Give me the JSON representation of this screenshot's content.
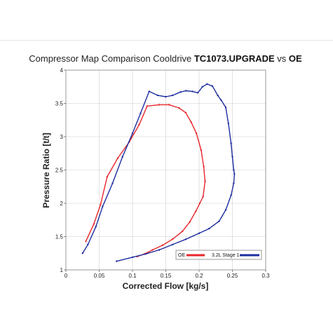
{
  "chart_data": {
    "type": "line",
    "title": {
      "prefix": "Compressor Map Comparison Cooldrive ",
      "bold_model": "TC1073.UPGRADE",
      "suffix": " vs ",
      "bold_oe": "OE"
    },
    "xlabel": "Corrected Flow [kg/s]",
    "ylabel": "Pressure Ratio [t/t]",
    "xlim": [
      0,
      0.3
    ],
    "ylim": [
      1,
      4
    ],
    "xticks": [
      0,
      0.05,
      0.1,
      0.15,
      0.2,
      0.25,
      0.3
    ],
    "xtick_labels": [
      "0",
      "0.05",
      "0.1",
      "0.15",
      "0.2",
      "0.25",
      "0.3"
    ],
    "yticks": [
      1,
      1.5,
      2,
      2.5,
      3,
      3.5,
      4
    ],
    "ytick_labels": [
      "1",
      "1.5",
      "2",
      "2.5",
      "3",
      "3.5",
      "4"
    ],
    "grid": true,
    "legend_position": "bottom-right",
    "series": [
      {
        "name": "OE",
        "color": "#e8262b",
        "x": [
          0.03,
          0.042,
          0.052,
          0.062,
          0.078,
          0.095,
          0.11,
          0.122,
          0.14,
          0.155,
          0.17,
          0.18,
          0.188,
          0.196,
          0.203,
          0.207,
          0.209,
          0.206,
          0.201,
          0.195,
          0.186,
          0.175,
          0.16,
          0.145,
          0.13,
          0.118,
          0.107
        ],
        "y": [
          1.43,
          1.69,
          1.98,
          2.4,
          2.68,
          2.92,
          3.18,
          3.46,
          3.48,
          3.48,
          3.43,
          3.36,
          3.22,
          3.05,
          2.8,
          2.55,
          2.33,
          2.1,
          2.0,
          1.88,
          1.72,
          1.58,
          1.46,
          1.37,
          1.3,
          1.24,
          1.2
        ]
      },
      {
        "name": "3.2L Stage 1",
        "color": "#1d2da0",
        "x": [
          0.025,
          0.033,
          0.045,
          0.055,
          0.07,
          0.085,
          0.1,
          0.112,
          0.125,
          0.138,
          0.15,
          0.16,
          0.172,
          0.18,
          0.19,
          0.198,
          0.205,
          0.212,
          0.22,
          0.228,
          0.233,
          0.24,
          0.244,
          0.248,
          0.25,
          0.252,
          0.253,
          0.252,
          0.248,
          0.24,
          0.23,
          0.215,
          0.2,
          0.18,
          0.16,
          0.14,
          0.12,
          0.1,
          0.076
        ],
        "y": [
          1.25,
          1.38,
          1.65,
          1.95,
          2.3,
          2.7,
          3.05,
          3.35,
          3.68,
          3.62,
          3.6,
          3.62,
          3.67,
          3.69,
          3.68,
          3.66,
          3.75,
          3.79,
          3.76,
          3.62,
          3.55,
          3.44,
          3.2,
          2.9,
          2.7,
          2.5,
          2.44,
          2.3,
          2.12,
          1.9,
          1.73,
          1.62,
          1.55,
          1.46,
          1.38,
          1.3,
          1.24,
          1.19,
          1.13
        ]
      }
    ]
  }
}
